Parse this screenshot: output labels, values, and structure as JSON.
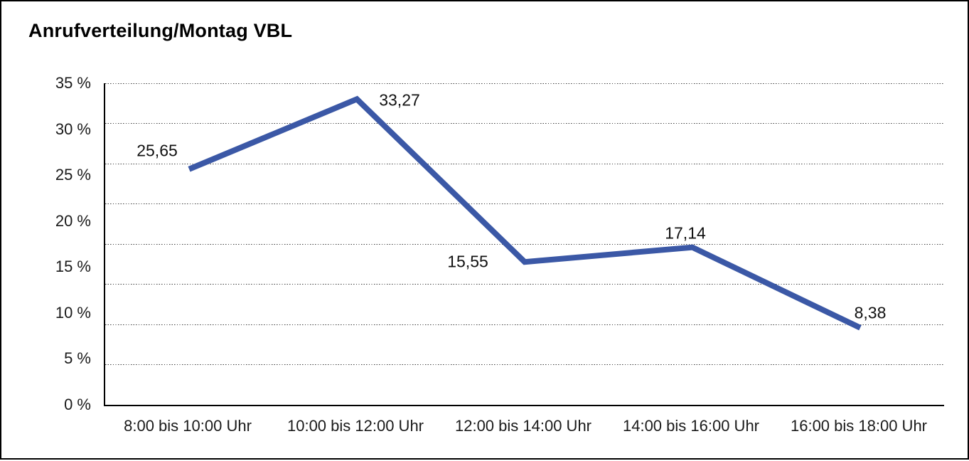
{
  "frame": {
    "background": "#ffffff",
    "border_color": "#000000"
  },
  "chart_data": {
    "type": "line",
    "title": "Anrufverteilung/Montag VBL",
    "categories": [
      "8:00 bis 10:00 Uhr",
      "10:00 bis 12:00 Uhr",
      "12:00 bis 14:00 Uhr",
      "14:00 bis 16:00 Uhr",
      "16:00 bis 18:00 Uhr"
    ],
    "values": [
      25.65,
      33.27,
      15.55,
      17.14,
      8.38
    ],
    "value_labels": [
      "25,65",
      "33,27",
      "15,55",
      "17,14",
      "8,38"
    ],
    "xlabel": "",
    "ylabel": "",
    "ylim": [
      0,
      35
    ],
    "ytick_step": 5,
    "ytick_labels": [
      "35 %",
      "30 %",
      "25 %",
      "20 %",
      "15 %",
      "10 %",
      "5 %",
      "0 %"
    ],
    "grid": "horizontal-dotted",
    "legend_position": "none",
    "line_color": "#3b58a6",
    "axis_color": "#000000",
    "text_color": "#1a1a1a"
  }
}
